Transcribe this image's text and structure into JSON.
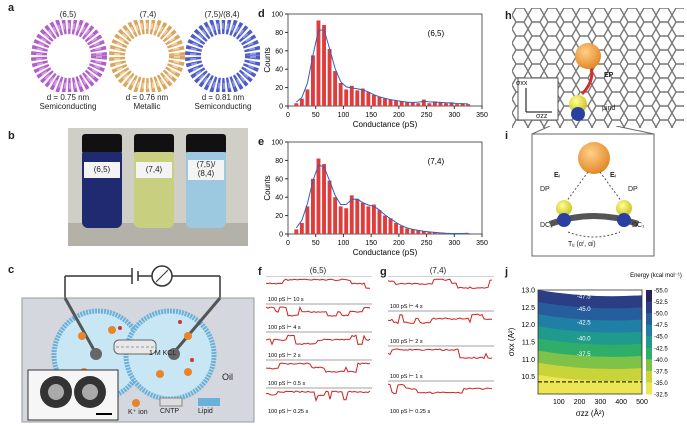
{
  "panels": {
    "a": "a",
    "b": "b",
    "c": "c",
    "d": "d",
    "e": "e",
    "f": "f",
    "g": "g",
    "h": "h",
    "i": "i",
    "j": "j"
  },
  "panel_a": {
    "tubes": [
      {
        "chirality": "(6,5)",
        "diameter": "d = 0.75 nm",
        "type": "Semiconducting",
        "color": "#b060c8"
      },
      {
        "chirality": "(7,4)",
        "diameter": "d = 0.76 nm",
        "type": "Metallic",
        "color": "#e0b070"
      },
      {
        "chirality": "(7,5)/(8,4)",
        "diameter": "d = 0.81 nm",
        "type": "Semiconducting",
        "color": "#5a6ad0"
      }
    ]
  },
  "panel_b": {
    "vials": [
      {
        "label": "(6,5)",
        "line2": "",
        "color": "#1f2a70"
      },
      {
        "label": "(7,4)",
        "line2": "",
        "color": "#c8d080"
      },
      {
        "label": "(7,5)/",
        "line2": "(8,4)",
        "color": "#9cc8e0"
      }
    ]
  },
  "panel_c": {
    "kcl": "1 M KCL",
    "oil": "Oil",
    "legend": {
      "ion": "K⁺ ion",
      "cntp": "CNTP",
      "lipid": "Lipid"
    }
  },
  "chart_data": [
    {
      "id": "d",
      "type": "bar",
      "title": "(6,5)",
      "xlabel": "Conductance (pS)",
      "ylabel": "Counts",
      "xlim": [
        0,
        350
      ],
      "ylim": [
        0,
        100
      ],
      "xticks": [
        0,
        50,
        100,
        150,
        200,
        250,
        300,
        350
      ],
      "yticks": [
        0,
        20,
        40,
        60,
        80,
        100
      ],
      "bin_width": 10,
      "bin_centers": [
        15,
        25,
        35,
        45,
        55,
        65,
        75,
        85,
        95,
        105,
        115,
        125,
        135,
        145,
        155,
        165,
        175,
        185,
        195,
        205,
        215,
        225,
        235,
        245,
        255,
        265,
        275,
        285,
        295,
        305,
        315,
        325
      ],
      "values": [
        3,
        8,
        18,
        55,
        93,
        88,
        62,
        38,
        25,
        18,
        22,
        17,
        19,
        15,
        12,
        10,
        8,
        7,
        6,
        5,
        4,
        4,
        3,
        7,
        3,
        5,
        4,
        3,
        4,
        2,
        3,
        2
      ]
    },
    {
      "id": "e",
      "type": "bar",
      "title": "(7,4)",
      "xlabel": "Conductance (pS)",
      "ylabel": "Counts",
      "xlim": [
        0,
        350
      ],
      "ylim": [
        0,
        100
      ],
      "xticks": [
        0,
        50,
        100,
        150,
        200,
        250,
        300,
        350
      ],
      "yticks": [
        0,
        20,
        40,
        60,
        80,
        100
      ],
      "bin_width": 10,
      "bin_centers": [
        15,
        25,
        35,
        45,
        55,
        65,
        75,
        85,
        95,
        105,
        115,
        125,
        135,
        145,
        155,
        165,
        175,
        185,
        195,
        205,
        215,
        225,
        235,
        245,
        255,
        265,
        275,
        285,
        295,
        305,
        315,
        325
      ],
      "values": [
        5,
        12,
        30,
        60,
        82,
        76,
        58,
        40,
        30,
        28,
        42,
        38,
        34,
        30,
        32,
        26,
        20,
        17,
        12,
        9,
        6,
        5,
        4,
        3,
        2,
        2,
        1,
        1,
        0,
        1,
        0,
        1
      ]
    },
    {
      "id": "j",
      "type": "heatmap",
      "title": "",
      "xlabel": "σzz (Å²)",
      "ylabel": "σxx (Å²)",
      "xlim": [
        0,
        500
      ],
      "ylim": [
        10,
        13
      ],
      "xticks": [
        100,
        200,
        300,
        400,
        500
      ],
      "yticks": [
        10.5,
        11.0,
        11.5,
        12.0,
        12.5,
        13.0
      ],
      "colorbar_label": "Energy (kcal mol⁻¹)",
      "colorbar_ticks": [
        -55.0,
        -52.5,
        -50.0,
        -47.5,
        -45.0,
        -42.5,
        -40.0,
        -37.5,
        -35.0,
        -32.5
      ],
      "contour_labels": [
        "-47.5",
        "-45.0",
        "-42.5",
        "-40.0",
        "-37.5"
      ]
    }
  ],
  "panel_f": {
    "title": "(6,5)",
    "scales": [
      "100 pS ⊢ 10 s",
      "100 pS ⊢ 4 s",
      "100 pS ⊢ 2 s",
      "100 pS ⊢ 0.5 s",
      "100 pS ⊢ 0.25 s"
    ]
  },
  "panel_g": {
    "title": "(7,4)",
    "scales": [
      "100 pS ⊢ 4 s",
      "100 pS ⊢ 2 s",
      "100 pS ⊢ 1 s",
      "100 pS ⊢ 0.25 s"
    ]
  },
  "panel_h": {
    "axis_y": "σxx",
    "axis_x": "σzz",
    "ep": "EP",
    "mu": "μind"
  },
  "panel_i": {
    "dp_left": "DP",
    "dp_right": "DP",
    "dc_left": "DC₁",
    "dc_right": "DC₁",
    "e_left": "Eᵢ",
    "e_right": "Eᵢ",
    "tensor": "Tᵢⱼ (αⁱ, αʲ)"
  }
}
